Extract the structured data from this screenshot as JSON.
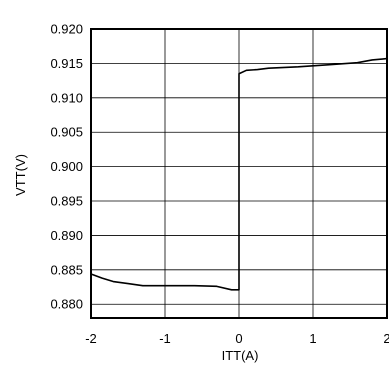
{
  "chart_data": {
    "type": "line",
    "title": "",
    "xlabel": "ITT(A)",
    "ylabel": "VTT(V)",
    "xlim": [
      -2,
      2
    ],
    "ylim": [
      0.878,
      0.92
    ],
    "x_ticks": [
      -2,
      -1,
      0,
      1,
      2
    ],
    "x_tick_labels": [
      "-2",
      "-1",
      "0",
      "1",
      "2"
    ],
    "y_ticks": [
      0.88,
      0.885,
      0.89,
      0.895,
      0.9,
      0.905,
      0.91,
      0.915,
      0.92
    ],
    "y_tick_labels": [
      "0.880",
      "0.885",
      "0.890",
      "0.895",
      "0.900",
      "0.905",
      "0.910",
      "0.915",
      "0.920"
    ],
    "grid": true,
    "series": [
      {
        "color": "#000000",
        "points": [
          [
            -2.0,
            0.8844
          ],
          [
            -1.85,
            0.8838
          ],
          [
            -1.7,
            0.8833
          ],
          [
            -1.5,
            0.883
          ],
          [
            -1.3,
            0.8827
          ],
          [
            -1.0,
            0.8827
          ],
          [
            -0.6,
            0.8827
          ],
          [
            -0.3,
            0.8826
          ],
          [
            -0.1,
            0.8821
          ],
          [
            0.0,
            0.8821
          ],
          [
            0.0,
            0.9135
          ],
          [
            0.1,
            0.914
          ],
          [
            0.25,
            0.9141
          ],
          [
            0.4,
            0.9143
          ],
          [
            0.8,
            0.9145
          ],
          [
            1.2,
            0.9148
          ],
          [
            1.6,
            0.9151
          ],
          [
            1.8,
            0.9155
          ],
          [
            2.0,
            0.9157
          ]
        ]
      }
    ]
  }
}
